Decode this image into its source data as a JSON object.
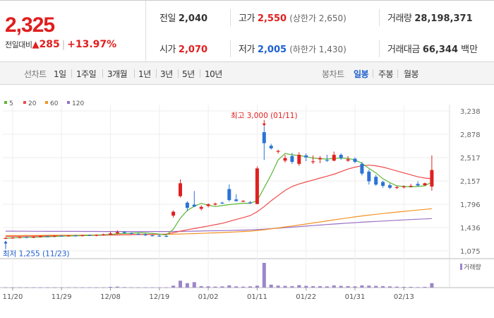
{
  "summary": {
    "current_price": "2,325",
    "change_label": "전일대비",
    "change_icon": "up-triangle-icon",
    "change_amount": "285",
    "change_percent": "+13.97%",
    "prev_close": {
      "label": "전일",
      "value": "2,040"
    },
    "open": {
      "label": "시가",
      "value": "2,070"
    },
    "high": {
      "label": "고가",
      "value": "2,550",
      "limit_text": "(상한가 2,650)"
    },
    "low": {
      "label": "저가",
      "value": "2,005",
      "limit_text": "(하한가 1,430)"
    },
    "volume": {
      "label": "거래량",
      "value": "28,198,371"
    },
    "trade_value": {
      "label": "거래대금",
      "value": "66,344",
      "unit": "백만"
    }
  },
  "toolbar": {
    "line_chart_label": "선차트",
    "periods": [
      "1일",
      "1주일",
      "3개월",
      "1년",
      "3년",
      "5년",
      "10년"
    ],
    "candle_chart_label": "봉차트",
    "candle_periods": [
      "일봉",
      "주봉",
      "월봉"
    ],
    "active_candle_period": "일봉"
  },
  "legend": [
    {
      "label": "5",
      "color": "#5cb836"
    },
    {
      "label": "20",
      "color": "#ee4b4b"
    },
    {
      "label": "60",
      "color": "#f39324"
    },
    {
      "label": "120",
      "color": "#9a6fc4"
    }
  ],
  "volume_legend": "거래량",
  "annotations": {
    "high": "최고 3,000 (01/11)",
    "low": "최저 1,255 (11/23)"
  },
  "colors": {
    "up": "#e02020",
    "down": "#2b73d6",
    "volume": "#9b86c9"
  },
  "chart_data": {
    "type": "candlestick",
    "y_ticks": [
      "3,238",
      "2,878",
      "2,517",
      "2,157",
      "1,796",
      "1,436",
      "1,075"
    ],
    "ylim": [
      1075,
      3238
    ],
    "x_tick_labels": [
      {
        "label": "11/20",
        "index": 1
      },
      {
        "label": "11/29",
        "index": 8
      },
      {
        "label": "12/08",
        "index": 15
      },
      {
        "label": "12/19",
        "index": 22
      },
      {
        "label": "01/02",
        "index": 29
      },
      {
        "label": "01/11",
        "index": 36
      },
      {
        "label": "01/22",
        "index": 43
      },
      {
        "label": "01/31",
        "index": 50
      },
      {
        "label": "02/13",
        "index": 57
      }
    ],
    "ohlc": [
      [
        1270,
        1285,
        1255,
        1275
      ],
      [
        1275,
        1290,
        1265,
        1280
      ],
      [
        1280,
        1295,
        1268,
        1288
      ],
      [
        1288,
        1300,
        1275,
        1282
      ],
      [
        1282,
        1298,
        1272,
        1292
      ],
      [
        1292,
        1310,
        1282,
        1300
      ],
      [
        1300,
        1312,
        1288,
        1295
      ],
      [
        1295,
        1315,
        1285,
        1308
      ],
      [
        1308,
        1320,
        1295,
        1302
      ],
      [
        1302,
        1318,
        1292,
        1312
      ],
      [
        1312,
        1325,
        1298,
        1306
      ],
      [
        1306,
        1322,
        1295,
        1318
      ],
      [
        1318,
        1330,
        1305,
        1312
      ],
      [
        1312,
        1328,
        1300,
        1322
      ],
      [
        1322,
        1342,
        1310,
        1330
      ],
      [
        1330,
        1375,
        1318,
        1346
      ],
      [
        1346,
        1395,
        1335,
        1365
      ],
      [
        1365,
        1380,
        1340,
        1350
      ],
      [
        1350,
        1362,
        1328,
        1338
      ],
      [
        1338,
        1352,
        1318,
        1330
      ],
      [
        1330,
        1345,
        1305,
        1315
      ],
      [
        1315,
        1328,
        1298,
        1310
      ],
      [
        1310,
        1325,
        1292,
        1305
      ],
      [
        1305,
        1320,
        1290,
        1300
      ],
      [
        1620,
        1700,
        1590,
        1680
      ],
      [
        1920,
        2180,
        1900,
        2120
      ],
      [
        1820,
        1840,
        1690,
        1740
      ],
      [
        1790,
        2000,
        1750,
        1760
      ],
      [
        1725,
        1780,
        1700,
        1755
      ],
      [
        1770,
        1810,
        1745,
        1795
      ],
      [
        1790,
        1820,
        1775,
        1805
      ],
      [
        1820,
        1835,
        1800,
        1810
      ],
      [
        2030,
        2100,
        1840,
        1860
      ],
      [
        1870,
        1950,
        1835,
        1845
      ],
      [
        1840,
        1855,
        1830,
        1850
      ],
      [
        1825,
        1845,
        1800,
        1810
      ],
      [
        1800,
        2380,
        1795,
        2350
      ],
      [
        2910,
        3000,
        2480,
        2740
      ],
      [
        2700,
        2730,
        2640,
        2660
      ],
      [
        2610,
        2640,
        2580,
        2620
      ],
      [
        2470,
        2560,
        2440,
        2510
      ],
      [
        2540,
        2590,
        2420,
        2450
      ],
      [
        2420,
        2600,
        2390,
        2560
      ],
      [
        2550,
        2580,
        2460,
        2520
      ],
      [
        2450,
        2550,
        2420,
        2460
      ],
      [
        2490,
        2540,
        2430,
        2510
      ],
      [
        2480,
        2560,
        2450,
        2470
      ],
      [
        2470,
        2610,
        2460,
        2560
      ],
      [
        2560,
        2580,
        2480,
        2510
      ],
      [
        2470,
        2540,
        2450,
        2490
      ],
      [
        2500,
        2520,
        2430,
        2450
      ],
      [
        2420,
        2450,
        2240,
        2270
      ],
      [
        2300,
        2330,
        2100,
        2150
      ],
      [
        2220,
        2250,
        2080,
        2100
      ],
      [
        2140,
        2160,
        2050,
        2080
      ],
      [
        2090,
        2120,
        2030,
        2050
      ],
      [
        2050,
        2080,
        2030,
        2060
      ],
      [
        2060,
        2090,
        2040,
        2070
      ],
      [
        2070,
        2110,
        2055,
        2080
      ],
      [
        2110,
        2150,
        2070,
        2085
      ],
      [
        2090,
        2130,
        2080,
        2120
      ],
      [
        2070,
        2550,
        2005,
        2325
      ]
    ],
    "ma5": [
      1270,
      1276,
      1281,
      1284,
      1285,
      1290,
      1293,
      1298,
      1302,
      1305,
      1309,
      1311,
      1315,
      1318,
      1324,
      1330,
      1340,
      1345,
      1348,
      1355,
      1352,
      1345,
      1335,
      1320,
      1410,
      1580,
      1700,
      1765,
      1810,
      1780,
      1760,
      1775,
      1790,
      1800,
      1812,
      1810,
      1850,
      2050,
      2250,
      2480,
      2580,
      2560,
      2550,
      2530,
      2510,
      2500,
      2495,
      2505,
      2510,
      2505,
      2480,
      2430,
      2350,
      2280,
      2190,
      2130,
      2080,
      2070,
      2065,
      2070,
      2080,
      2140
    ],
    "ma20": [
      1300,
      1300,
      1301,
      1302,
      1303,
      1304,
      1305,
      1306,
      1307,
      1308,
      1309,
      1311,
      1313,
      1315,
      1317,
      1319,
      1321,
      1323,
      1325,
      1327,
      1328,
      1330,
      1332,
      1335,
      1355,
      1380,
      1400,
      1420,
      1440,
      1460,
      1480,
      1500,
      1530,
      1560,
      1590,
      1620,
      1680,
      1760,
      1850,
      1930,
      2010,
      2070,
      2110,
      2140,
      2170,
      2200,
      2230,
      2260,
      2300,
      2340,
      2370,
      2390,
      2400,
      2390,
      2370,
      2340,
      2310,
      2280,
      2250,
      2220,
      2200,
      2190
    ],
    "ma60": [
      1310,
      1311,
      1312,
      1313,
      1313,
      1314,
      1315,
      1316,
      1317,
      1318,
      1318,
      1319,
      1320,
      1321,
      1322,
      1323,
      1324,
      1325,
      1326,
      1327,
      1328,
      1329,
      1330,
      1331,
      1333,
      1336,
      1339,
      1342,
      1346,
      1350,
      1354,
      1358,
      1363,
      1368,
      1374,
      1380,
      1390,
      1402,
      1416,
      1430,
      1445,
      1460,
      1475,
      1490,
      1506,
      1522,
      1538,
      1555,
      1570,
      1585,
      1600,
      1615,
      1628,
      1640,
      1652,
      1664,
      1675,
      1686,
      1696,
      1706,
      1716,
      1726
    ],
    "ma120": [
      1380,
      1380,
      1379,
      1379,
      1378,
      1378,
      1377,
      1377,
      1376,
      1376,
      1376,
      1375,
      1375,
      1375,
      1374,
      1374,
      1374,
      1374,
      1374,
      1374,
      1374,
      1374,
      1374,
      1374,
      1375,
      1376,
      1378,
      1380,
      1382,
      1384,
      1386,
      1388,
      1390,
      1393,
      1396,
      1399,
      1404,
      1410,
      1418,
      1426,
      1434,
      1442,
      1450,
      1458,
      1466,
      1474,
      1482,
      1490,
      1497,
      1504,
      1511,
      1518,
      1524,
      1530,
      1536,
      1542,
      1548,
      1554,
      1559,
      1564,
      1569,
      1574
    ],
    "volume": [
      1,
      1,
      1,
      1,
      1,
      1,
      1,
      1,
      1,
      1,
      1,
      1,
      1,
      1,
      1,
      3,
      4,
      2,
      1,
      1,
      1,
      1,
      1,
      1,
      8,
      28,
      18,
      22,
      6,
      5,
      4,
      5,
      9,
      5,
      4,
      5,
      8,
      100,
      12,
      8,
      7,
      6,
      10,
      7,
      6,
      6,
      5,
      9,
      7,
      6,
      5,
      9,
      8,
      7,
      6,
      5,
      4,
      3,
      3,
      2,
      3,
      18
    ]
  }
}
